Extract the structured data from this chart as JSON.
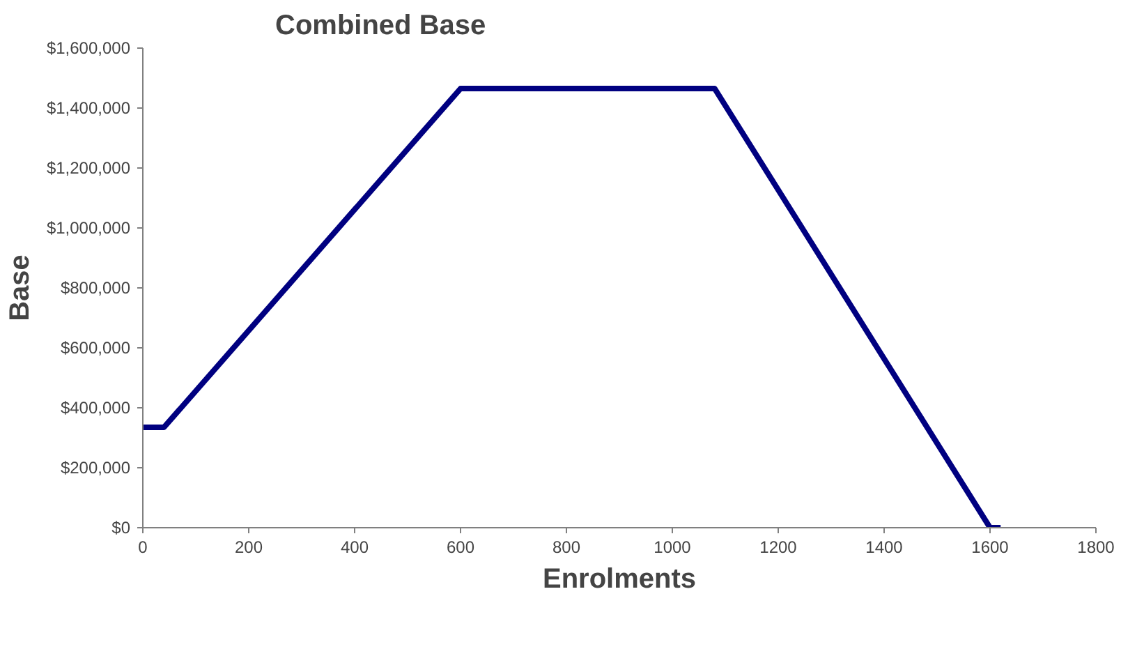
{
  "chart_data": {
    "type": "line",
    "title": "Combined Base",
    "xlabel": "Enrolments",
    "ylabel": "Base",
    "x": [
      0,
      40,
      600,
      1080,
      1600,
      1620
    ],
    "series": [
      {
        "color": "#000080",
        "values": [
          335000,
          335000,
          1465000,
          1465000,
          0,
          0
        ]
      }
    ],
    "xlim": [
      0,
      1800
    ],
    "xticks": [
      0,
      200,
      400,
      600,
      800,
      1000,
      1200,
      1400,
      1600,
      1800
    ],
    "ylim": [
      0,
      1600000
    ],
    "yticks": [
      {
        "value": 0,
        "label": "$0"
      },
      {
        "value": 200000,
        "label": "$200,000"
      },
      {
        "value": 400000,
        "label": "$400,000"
      },
      {
        "value": 600000,
        "label": "$600,000"
      },
      {
        "value": 800000,
        "label": "$800,000"
      },
      {
        "value": 1000000,
        "label": "$1,000,000"
      },
      {
        "value": 1200000,
        "label": "$1,200,000"
      },
      {
        "value": 1400000,
        "label": "$1,400,000"
      },
      {
        "value": 1600000,
        "label": "$1,600,000"
      }
    ],
    "grid": false,
    "marker": "none",
    "line_style": "solid"
  }
}
